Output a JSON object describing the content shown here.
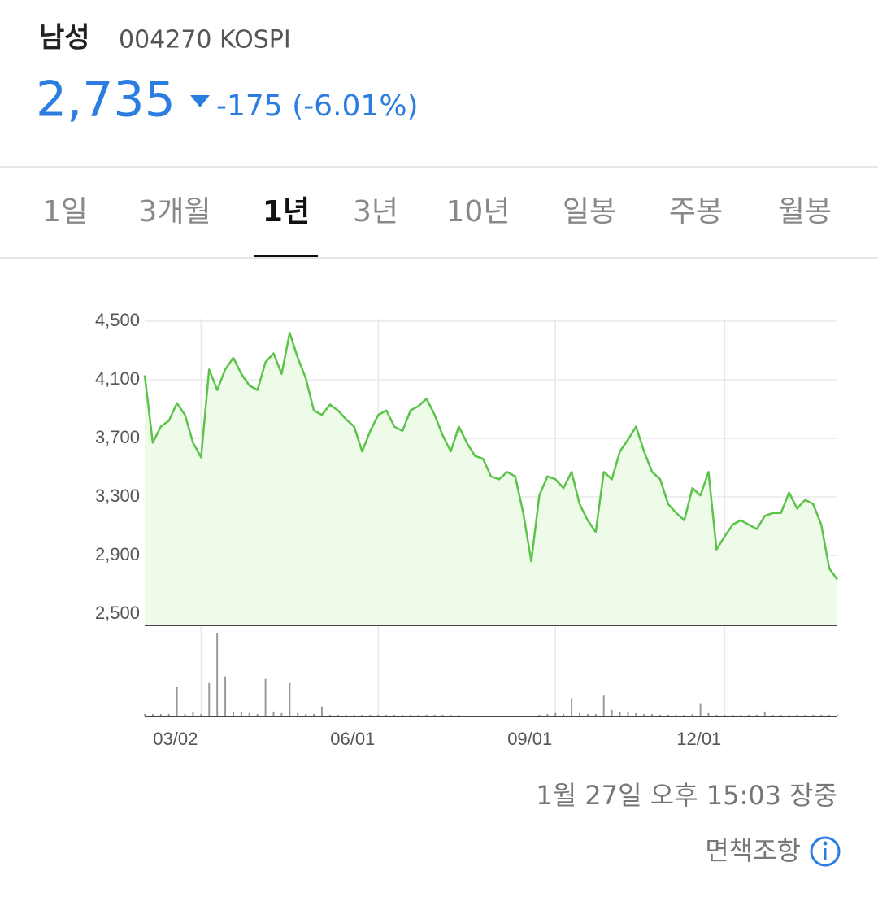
{
  "header": {
    "name": "남성",
    "code": "004270 KOSPI",
    "price": "2,735",
    "change": "-175 (-6.01%)"
  },
  "tabs": {
    "items": [
      "1일",
      "3개월",
      "1년",
      "3년",
      "10년",
      "일봉",
      "주봉",
      "월봉"
    ],
    "selected": 2
  },
  "chart_data": [
    {
      "type": "line",
      "color": "#5cc34a",
      "fill": "#edfbe8",
      "grid": true,
      "ylim": [
        2422,
        4583
      ],
      "yticks": [
        {
          "value": 2500,
          "label": "2,500"
        },
        {
          "value": 2900,
          "label": "2,900"
        },
        {
          "value": 3300,
          "label": "3,300"
        },
        {
          "value": 3700,
          "label": "3,700"
        },
        {
          "value": 4100,
          "label": "4,100"
        },
        {
          "value": 4500,
          "label": "4,500"
        }
      ],
      "categories": [
        null,
        null,
        null,
        null,
        null,
        null,
        null,
        "03/02",
        null,
        null,
        null,
        null,
        null,
        null,
        null,
        null,
        null,
        null,
        null,
        null,
        null,
        null,
        null,
        null,
        null,
        null,
        null,
        null,
        null,
        "06/01",
        null,
        null,
        null,
        null,
        null,
        null,
        null,
        null,
        null,
        null,
        null,
        null,
        null,
        null,
        null,
        null,
        null,
        null,
        null,
        null,
        null,
        "09/01",
        null,
        null,
        null,
        null,
        null,
        null,
        null,
        null,
        null,
        null,
        null,
        null,
        null,
        null,
        null,
        null,
        null,
        null,
        null,
        null,
        "12/01",
        null,
        null,
        null,
        null,
        null,
        null,
        null,
        null,
        null,
        null,
        null,
        null,
        null,
        null
      ],
      "values": [
        4130,
        3670,
        3780,
        3820,
        3940,
        3860,
        3670,
        3570,
        4170,
        4030,
        4170,
        4250,
        4140,
        4060,
        4030,
        4220,
        4280,
        4140,
        4420,
        4250,
        4110,
        3890,
        3860,
        3930,
        3890,
        3830,
        3780,
        3610,
        3750,
        3860,
        3890,
        3780,
        3750,
        3890,
        3920,
        3970,
        3860,
        3720,
        3610,
        3780,
        3670,
        3580,
        3560,
        3440,
        3420,
        3470,
        3440,
        3190,
        2860,
        3310,
        3440,
        3420,
        3360,
        3470,
        3250,
        3140,
        3060,
        3470,
        3420,
        3610,
        3690,
        3780,
        3610,
        3470,
        3420,
        3250,
        3190,
        3140,
        3360,
        3310,
        3470,
        2940,
        3030,
        3110,
        3140,
        3110,
        3080,
        3170,
        3190,
        3190,
        3330,
        3220,
        3280,
        3250,
        3110,
        2810,
        2735
      ]
    },
    {
      "type": "bar",
      "color": "#999999",
      "ylim": [
        0,
        100
      ],
      "values": [
        3,
        3,
        3,
        3,
        35,
        3,
        5,
        3,
        40,
        100,
        48,
        5,
        6,
        4,
        3,
        45,
        6,
        4,
        40,
        4,
        3,
        3,
        12,
        2,
        2,
        2,
        2,
        2,
        2,
        2,
        2,
        2,
        2,
        2,
        2,
        2,
        2,
        2,
        2,
        2,
        1,
        1,
        1,
        1,
        1,
        1,
        1,
        1,
        1,
        2,
        3,
        4,
        3,
        22,
        4,
        3,
        3,
        25,
        8,
        6,
        5,
        4,
        3,
        3,
        2,
        2,
        2,
        2,
        3,
        15,
        4,
        2,
        2,
        2,
        2,
        2,
        2,
        6,
        2,
        2,
        2,
        2,
        2,
        2,
        2,
        2,
        2
      ]
    }
  ],
  "footer": {
    "time": "1월 27일 오후 15:03 장중",
    "disclaimer": "면책조항"
  }
}
